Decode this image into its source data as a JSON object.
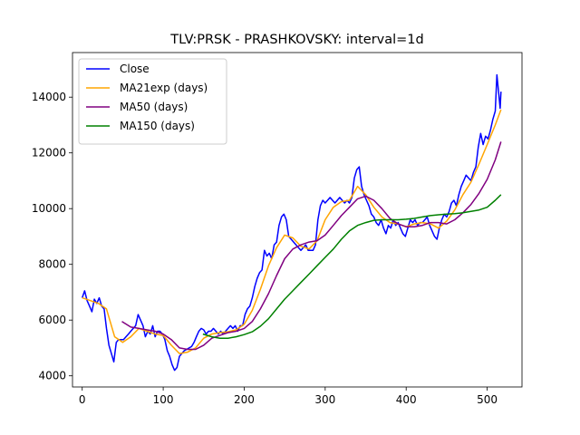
{
  "chart_data": {
    "type": "line",
    "title": "TLV:PRSK - PRASHKOVSKY: interval=1d",
    "xlabel": "",
    "ylabel": "",
    "xlim": [
      -12,
      543
    ],
    "ylim": [
      3600,
      15600
    ],
    "xticks": [
      0,
      100,
      200,
      300,
      400,
      500
    ],
    "yticks": [
      4000,
      6000,
      8000,
      10000,
      12000,
      14000
    ],
    "legend_position": "upper-left",
    "grid": false,
    "series": [
      {
        "name": "Close",
        "color": "#0000ff",
        "points": [
          [
            0,
            6800
          ],
          [
            3,
            7050
          ],
          [
            6,
            6700
          ],
          [
            9,
            6500
          ],
          [
            12,
            6300
          ],
          [
            15,
            6750
          ],
          [
            18,
            6600
          ],
          [
            21,
            6800
          ],
          [
            24,
            6500
          ],
          [
            27,
            6400
          ],
          [
            30,
            5700
          ],
          [
            33,
            5100
          ],
          [
            36,
            4800
          ],
          [
            39,
            4500
          ],
          [
            42,
            5200
          ],
          [
            45,
            5300
          ],
          [
            48,
            5300
          ],
          [
            51,
            5300
          ],
          [
            54,
            5400
          ],
          [
            57,
            5500
          ],
          [
            60,
            5600
          ],
          [
            63,
            5700
          ],
          [
            66,
            5800
          ],
          [
            69,
            6200
          ],
          [
            72,
            6000
          ],
          [
            75,
            5800
          ],
          [
            78,
            5400
          ],
          [
            81,
            5600
          ],
          [
            84,
            5500
          ],
          [
            87,
            5800
          ],
          [
            90,
            5400
          ],
          [
            93,
            5600
          ],
          [
            96,
            5600
          ],
          [
            99,
            5500
          ],
          [
            102,
            5300
          ],
          [
            105,
            4900
          ],
          [
            108,
            4700
          ],
          [
            111,
            4400
          ],
          [
            114,
            4200
          ],
          [
            117,
            4300
          ],
          [
            120,
            4700
          ],
          [
            123,
            4800
          ],
          [
            126,
            4900
          ],
          [
            129,
            4950
          ],
          [
            132,
            5000
          ],
          [
            135,
            5050
          ],
          [
            138,
            5200
          ],
          [
            141,
            5400
          ],
          [
            144,
            5600
          ],
          [
            147,
            5700
          ],
          [
            150,
            5650
          ],
          [
            153,
            5500
          ],
          [
            156,
            5600
          ],
          [
            159,
            5600
          ],
          [
            162,
            5700
          ],
          [
            165,
            5600
          ],
          [
            168,
            5500
          ],
          [
            171,
            5600
          ],
          [
            174,
            5500
          ],
          [
            177,
            5600
          ],
          [
            180,
            5700
          ],
          [
            183,
            5800
          ],
          [
            186,
            5700
          ],
          [
            189,
            5800
          ],
          [
            192,
            5600
          ],
          [
            195,
            5800
          ],
          [
            198,
            5800
          ],
          [
            201,
            6200
          ],
          [
            204,
            6400
          ],
          [
            207,
            6500
          ],
          [
            210,
            6800
          ],
          [
            213,
            7200
          ],
          [
            216,
            7500
          ],
          [
            219,
            7700
          ],
          [
            222,
            7800
          ],
          [
            225,
            8500
          ],
          [
            228,
            8300
          ],
          [
            231,
            8400
          ],
          [
            234,
            8200
          ],
          [
            237,
            8700
          ],
          [
            240,
            8800
          ],
          [
            243,
            9400
          ],
          [
            246,
            9700
          ],
          [
            249,
            9800
          ],
          [
            252,
            9600
          ],
          [
            255,
            9000
          ],
          [
            258,
            8900
          ],
          [
            261,
            8800
          ],
          [
            264,
            8700
          ],
          [
            267,
            8600
          ],
          [
            270,
            8500
          ],
          [
            273,
            8600
          ],
          [
            276,
            8700
          ],
          [
            279,
            8500
          ],
          [
            282,
            8500
          ],
          [
            285,
            8500
          ],
          [
            288,
            8700
          ],
          [
            291,
            9600
          ],
          [
            294,
            10100
          ],
          [
            297,
            10300
          ],
          [
            300,
            10200
          ],
          [
            303,
            10300
          ],
          [
            306,
            10400
          ],
          [
            309,
            10300
          ],
          [
            312,
            10200
          ],
          [
            315,
            10300
          ],
          [
            318,
            10400
          ],
          [
            321,
            10300
          ],
          [
            324,
            10200
          ],
          [
            327,
            10300
          ],
          [
            330,
            10200
          ],
          [
            333,
            10400
          ],
          [
            336,
            11100
          ],
          [
            339,
            11400
          ],
          [
            342,
            11500
          ],
          [
            345,
            10800
          ],
          [
            348,
            10500
          ],
          [
            351,
            10300
          ],
          [
            354,
            10100
          ],
          [
            357,
            9800
          ],
          [
            360,
            9700
          ],
          [
            363,
            9500
          ],
          [
            366,
            9400
          ],
          [
            369,
            9600
          ],
          [
            372,
            9300
          ],
          [
            375,
            9100
          ],
          [
            378,
            9400
          ],
          [
            381,
            9300
          ],
          [
            384,
            9600
          ],
          [
            387,
            9400
          ],
          [
            390,
            9500
          ],
          [
            393,
            9300
          ],
          [
            396,
            9100
          ],
          [
            399,
            9000
          ],
          [
            402,
            9300
          ],
          [
            405,
            9600
          ],
          [
            408,
            9500
          ],
          [
            411,
            9600
          ],
          [
            414,
            9400
          ],
          [
            417,
            9500
          ],
          [
            420,
            9500
          ],
          [
            423,
            9600
          ],
          [
            426,
            9700
          ],
          [
            429,
            9400
          ],
          [
            432,
            9200
          ],
          [
            435,
            9000
          ],
          [
            438,
            8900
          ],
          [
            441,
            9300
          ],
          [
            444,
            9600
          ],
          [
            447,
            9800
          ],
          [
            450,
            9700
          ],
          [
            453,
            9900
          ],
          [
            456,
            10200
          ],
          [
            459,
            10300
          ],
          [
            462,
            10100
          ],
          [
            465,
            10500
          ],
          [
            468,
            10800
          ],
          [
            471,
            11000
          ],
          [
            474,
            11200
          ],
          [
            477,
            11100
          ],
          [
            480,
            11000
          ],
          [
            483,
            11300
          ],
          [
            486,
            11500
          ],
          [
            489,
            12200
          ],
          [
            492,
            12700
          ],
          [
            495,
            12300
          ],
          [
            498,
            12600
          ],
          [
            501,
            12500
          ],
          [
            504,
            12800
          ],
          [
            507,
            13200
          ],
          [
            510,
            13500
          ],
          [
            512,
            14800
          ],
          [
            514,
            14200
          ],
          [
            516,
            13600
          ],
          [
            517,
            14200
          ]
        ]
      },
      {
        "name": "MA21exp (days)",
        "color": "#ffa500",
        "points": [
          [
            0,
            6800
          ],
          [
            10,
            6700
          ],
          [
            20,
            6600
          ],
          [
            30,
            6400
          ],
          [
            40,
            5400
          ],
          [
            50,
            5200
          ],
          [
            60,
            5400
          ],
          [
            70,
            5700
          ],
          [
            80,
            5600
          ],
          [
            90,
            5500
          ],
          [
            100,
            5450
          ],
          [
            110,
            5100
          ],
          [
            120,
            4800
          ],
          [
            130,
            4850
          ],
          [
            140,
            5000
          ],
          [
            150,
            5350
          ],
          [
            160,
            5500
          ],
          [
            170,
            5550
          ],
          [
            180,
            5580
          ],
          [
            190,
            5650
          ],
          [
            200,
            5850
          ],
          [
            210,
            6350
          ],
          [
            220,
            7100
          ],
          [
            230,
            7950
          ],
          [
            240,
            8600
          ],
          [
            250,
            9050
          ],
          [
            260,
            8950
          ],
          [
            270,
            8650
          ],
          [
            280,
            8550
          ],
          [
            290,
            8850
          ],
          [
            300,
            9600
          ],
          [
            310,
            10050
          ],
          [
            320,
            10250
          ],
          [
            330,
            10300
          ],
          [
            340,
            10800
          ],
          [
            350,
            10500
          ],
          [
            360,
            10050
          ],
          [
            370,
            9700
          ],
          [
            380,
            9500
          ],
          [
            390,
            9450
          ],
          [
            400,
            9350
          ],
          [
            410,
            9450
          ],
          [
            420,
            9500
          ],
          [
            430,
            9450
          ],
          [
            440,
            9300
          ],
          [
            450,
            9550
          ],
          [
            460,
            9950
          ],
          [
            470,
            10500
          ],
          [
            480,
            10950
          ],
          [
            490,
            11600
          ],
          [
            500,
            12300
          ],
          [
            510,
            13000
          ],
          [
            517,
            13550
          ]
        ]
      },
      {
        "name": "MA50 (days)",
        "color": "#800080",
        "points": [
          [
            49,
            5950
          ],
          [
            60,
            5750
          ],
          [
            70,
            5700
          ],
          [
            80,
            5650
          ],
          [
            90,
            5600
          ],
          [
            100,
            5500
          ],
          [
            110,
            5300
          ],
          [
            120,
            5000
          ],
          [
            130,
            4950
          ],
          [
            140,
            4950
          ],
          [
            150,
            5100
          ],
          [
            160,
            5350
          ],
          [
            170,
            5450
          ],
          [
            180,
            5550
          ],
          [
            190,
            5600
          ],
          [
            200,
            5700
          ],
          [
            210,
            5950
          ],
          [
            220,
            6400
          ],
          [
            230,
            6950
          ],
          [
            240,
            7600
          ],
          [
            250,
            8200
          ],
          [
            260,
            8550
          ],
          [
            270,
            8700
          ],
          [
            280,
            8800
          ],
          [
            290,
            8850
          ],
          [
            300,
            9050
          ],
          [
            310,
            9400
          ],
          [
            320,
            9750
          ],
          [
            330,
            10050
          ],
          [
            340,
            10350
          ],
          [
            350,
            10450
          ],
          [
            360,
            10300
          ],
          [
            370,
            10000
          ],
          [
            380,
            9650
          ],
          [
            390,
            9450
          ],
          [
            400,
            9350
          ],
          [
            410,
            9350
          ],
          [
            420,
            9400
          ],
          [
            430,
            9500
          ],
          [
            440,
            9500
          ],
          [
            450,
            9450
          ],
          [
            460,
            9600
          ],
          [
            470,
            9850
          ],
          [
            480,
            10150
          ],
          [
            490,
            10550
          ],
          [
            500,
            11050
          ],
          [
            510,
            11750
          ],
          [
            517,
            12400
          ]
        ]
      },
      {
        "name": "MA150 (days)",
        "color": "#008000",
        "points": [
          [
            149,
            5500
          ],
          [
            160,
            5400
          ],
          [
            170,
            5350
          ],
          [
            180,
            5350
          ],
          [
            190,
            5400
          ],
          [
            200,
            5480
          ],
          [
            210,
            5580
          ],
          [
            220,
            5780
          ],
          [
            230,
            6050
          ],
          [
            240,
            6400
          ],
          [
            250,
            6750
          ],
          [
            260,
            7050
          ],
          [
            270,
            7350
          ],
          [
            280,
            7650
          ],
          [
            290,
            7950
          ],
          [
            300,
            8250
          ],
          [
            310,
            8550
          ],
          [
            320,
            8900
          ],
          [
            330,
            9200
          ],
          [
            340,
            9400
          ],
          [
            350,
            9500
          ],
          [
            360,
            9580
          ],
          [
            370,
            9600
          ],
          [
            380,
            9600
          ],
          [
            390,
            9600
          ],
          [
            400,
            9620
          ],
          [
            410,
            9650
          ],
          [
            420,
            9700
          ],
          [
            430,
            9750
          ],
          [
            440,
            9780
          ],
          [
            450,
            9800
          ],
          [
            460,
            9820
          ],
          [
            470,
            9850
          ],
          [
            480,
            9900
          ],
          [
            490,
            9950
          ],
          [
            500,
            10050
          ],
          [
            510,
            10300
          ],
          [
            517,
            10500
          ]
        ]
      }
    ]
  }
}
